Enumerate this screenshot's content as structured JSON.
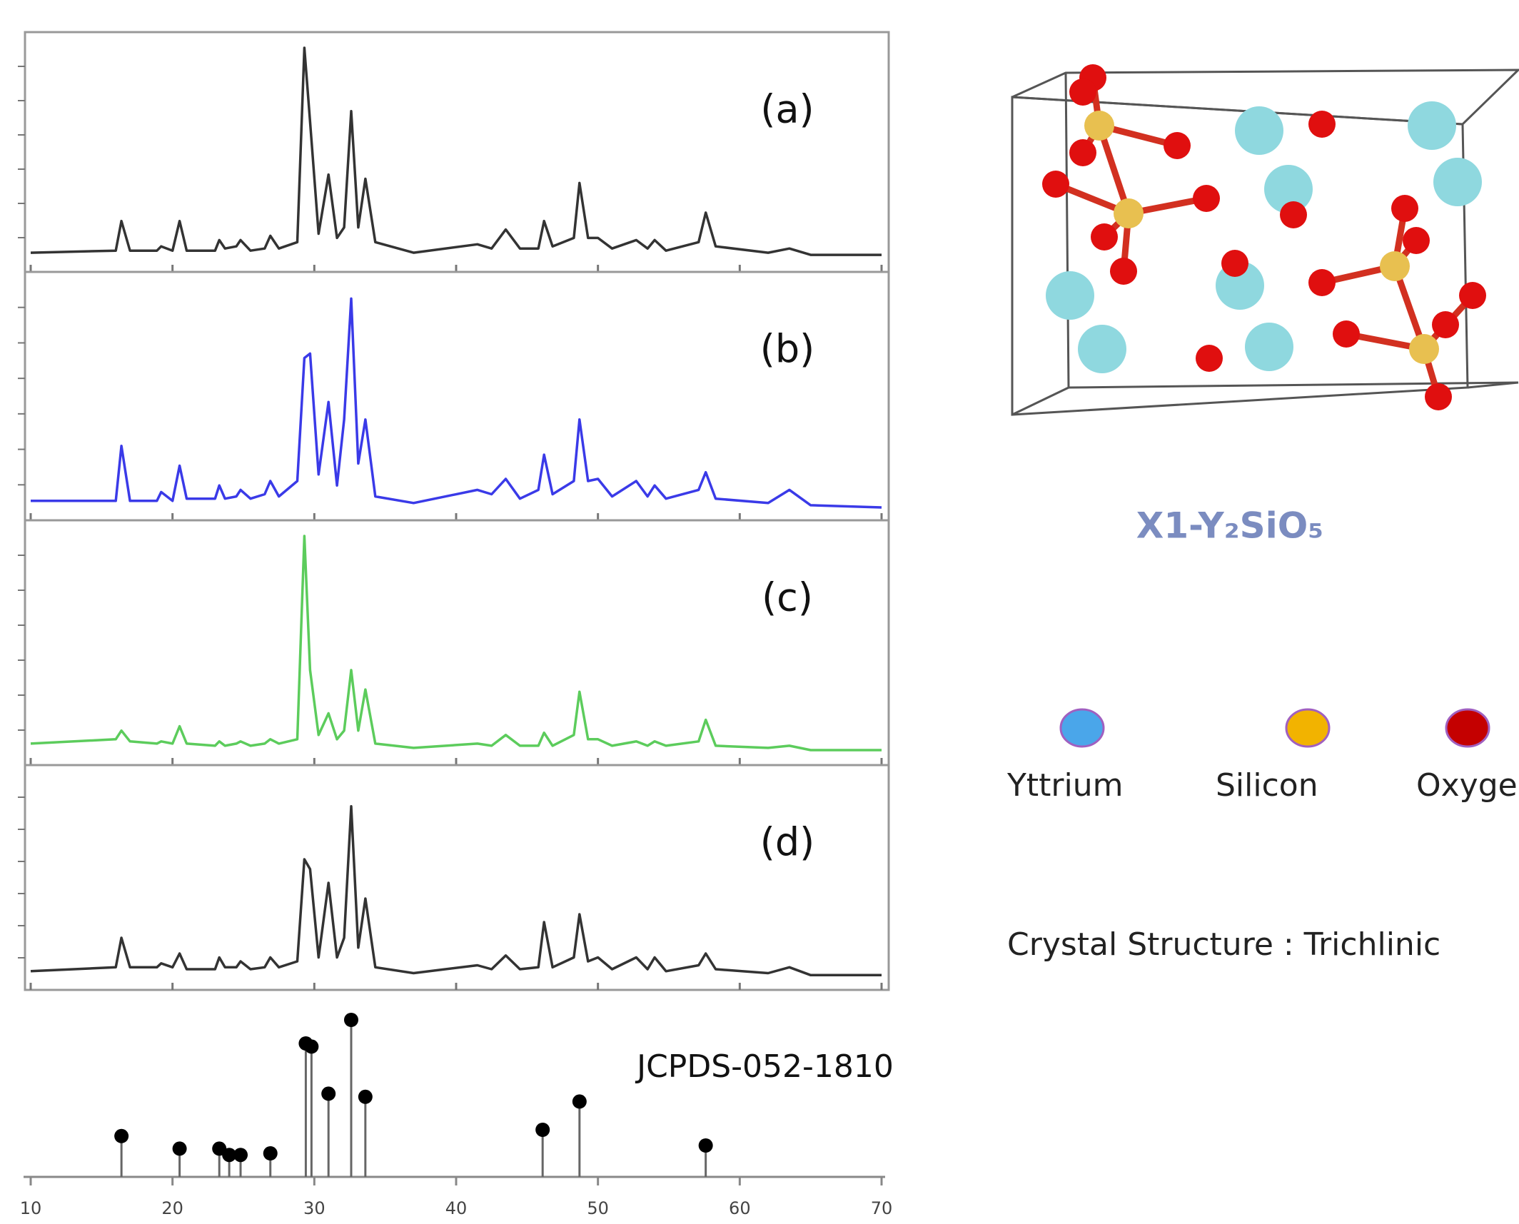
{
  "chart_data": [
    {
      "type": "line",
      "label": "(a)",
      "color": "#333333",
      "xlim": [
        10,
        70
      ],
      "ylim": [
        0,
        100
      ],
      "x": [
        10,
        16,
        16.4,
        17,
        18.9,
        19.2,
        20,
        20.5,
        21,
        23,
        23.3,
        23.7,
        24.5,
        24.8,
        25.5,
        26.5,
        26.9,
        27.5,
        28.8,
        29.3,
        29.7,
        30.3,
        31,
        31.6,
        32.1,
        32.6,
        33.1,
        33.6,
        34.3,
        37,
        41.5,
        42.5,
        43.5,
        44.5,
        45.8,
        46.2,
        46.8,
        48.3,
        48.7,
        49.3,
        50,
        51,
        52.7,
        53.5,
        54,
        54.8,
        57.1,
        57.6,
        58.3,
        62,
        63.5,
        65,
        70
      ],
      "values": [
        3,
        4,
        18,
        4,
        4,
        6,
        4,
        18,
        4,
        4,
        9,
        5,
        6,
        9,
        4,
        5,
        11,
        5,
        8,
        100,
        65,
        12,
        40,
        10,
        15,
        70,
        15,
        38,
        8,
        3,
        7,
        5,
        14,
        5,
        5,
        18,
        6,
        10,
        36,
        10,
        10,
        5,
        9,
        5,
        9,
        4,
        8,
        22,
        6,
        3,
        5,
        2,
        2
      ]
    },
    {
      "type": "line",
      "label": "(b)",
      "color": "#3a3ae8",
      "xlim": [
        10,
        70
      ],
      "ylim": [
        0,
        100
      ],
      "x": [
        10,
        16,
        16.4,
        17,
        18.9,
        19.2,
        20,
        20.5,
        21,
        23,
        23.3,
        23.7,
        24.5,
        24.8,
        25.5,
        26.5,
        26.9,
        27.5,
        28.8,
        29.3,
        29.7,
        30.3,
        31,
        31.6,
        32.1,
        32.6,
        33.1,
        33.6,
        34.3,
        37,
        41.5,
        42.5,
        43.5,
        44.5,
        45.8,
        46.2,
        46.8,
        48.3,
        48.7,
        49.3,
        50,
        51,
        52.7,
        53.5,
        54,
        54.8,
        57.1,
        57.6,
        58.3,
        62,
        63.5,
        65,
        70
      ],
      "values": [
        3,
        3,
        28,
        3,
        3,
        7,
        3,
        19,
        4,
        4,
        10,
        4,
        5,
        8,
        4,
        6,
        12,
        5,
        12,
        68,
        70,
        15,
        48,
        10,
        40,
        95,
        20,
        40,
        5,
        2,
        8,
        6,
        13,
        4,
        8,
        24,
        6,
        12,
        40,
        12,
        13,
        5,
        12,
        5,
        10,
        4,
        8,
        16,
        4,
        2,
        8,
        1,
        0
      ]
    },
    {
      "type": "line",
      "label": "(c)",
      "color": "#5ccc5c",
      "xlim": [
        10,
        70
      ],
      "ylim": [
        0,
        100
      ],
      "x": [
        10,
        16,
        16.4,
        17,
        18.9,
        19.2,
        20,
        20.5,
        21,
        23,
        23.3,
        23.7,
        24.5,
        24.8,
        25.5,
        26.5,
        26.9,
        27.5,
        28.8,
        29.3,
        29.7,
        30.3,
        31,
        31.6,
        32.1,
        32.6,
        33.1,
        33.6,
        34.3,
        37,
        41.5,
        42.5,
        43.5,
        44.5,
        45.8,
        46.2,
        46.8,
        48.3,
        48.7,
        49.3,
        50,
        51,
        52.7,
        53.5,
        54,
        54.8,
        57.1,
        57.6,
        58.3,
        62,
        63.5,
        65,
        70
      ],
      "values": [
        4,
        6,
        10,
        5,
        4,
        5,
        4,
        12,
        4,
        3,
        5,
        3,
        4,
        5,
        3,
        4,
        6,
        4,
        6,
        100,
        38,
        8,
        18,
        6,
        10,
        38,
        10,
        29,
        4,
        2,
        4,
        3,
        8,
        3,
        3,
        9,
        3,
        8,
        28,
        6,
        6,
        3,
        5,
        3,
        5,
        3,
        5,
        15,
        3,
        2,
        3,
        1,
        1
      ]
    },
    {
      "type": "line",
      "label": "(d)",
      "color": "#333333",
      "xlim": [
        10,
        70
      ],
      "ylim": [
        0,
        100
      ],
      "x": [
        10,
        16,
        16.4,
        17,
        18.9,
        19.2,
        20,
        20.5,
        21,
        23,
        23.3,
        23.7,
        24.5,
        24.8,
        25.5,
        26.5,
        26.9,
        27.5,
        28.8,
        29.3,
        29.7,
        30.3,
        31,
        31.6,
        32.1,
        32.6,
        33.1,
        33.6,
        34.3,
        37,
        41.5,
        42.5,
        43.5,
        44.5,
        45.8,
        46.2,
        46.8,
        48.3,
        48.7,
        49.3,
        50,
        51,
        52.7,
        53.5,
        54,
        54.8,
        57.1,
        57.6,
        58.3,
        62,
        63.5,
        65,
        70
      ],
      "values": [
        3,
        5,
        20,
        5,
        5,
        7,
        5,
        12,
        4,
        4,
        10,
        5,
        5,
        8,
        4,
        5,
        10,
        5,
        8,
        60,
        55,
        10,
        48,
        10,
        20,
        87,
        15,
        40,
        5,
        2,
        6,
        4,
        11,
        4,
        5,
        28,
        5,
        10,
        32,
        8,
        10,
        4,
        10,
        4,
        10,
        3,
        6,
        12,
        4,
        2,
        5,
        1,
        1
      ]
    },
    {
      "type": "stem",
      "label": "JCPDS-052-1810",
      "color": "#000000",
      "xlim": [
        10,
        70
      ],
      "ylim": [
        0,
        100
      ],
      "xticks": [
        10,
        20,
        30,
        40,
        50,
        60,
        70
      ],
      "x": [
        16.4,
        20.5,
        23.3,
        24,
        24.8,
        26.9,
        29.4,
        29.8,
        31,
        32.6,
        33.6,
        46.1,
        48.7,
        57.6
      ],
      "values": [
        26,
        18,
        18,
        14,
        14,
        15,
        85,
        83,
        53,
        100,
        51,
        30,
        48,
        20
      ]
    }
  ],
  "structure": {
    "title": "X1-Y₂SiO₅",
    "caption": "Crystal Structure : Trichlinic",
    "legend": [
      {
        "label": "Yttrium",
        "color": "#4aa6ea"
      },
      {
        "label": "Silicon",
        "color": "#f2b300"
      },
      {
        "label": "Oxyge",
        "color": "#c40000"
      }
    ]
  }
}
